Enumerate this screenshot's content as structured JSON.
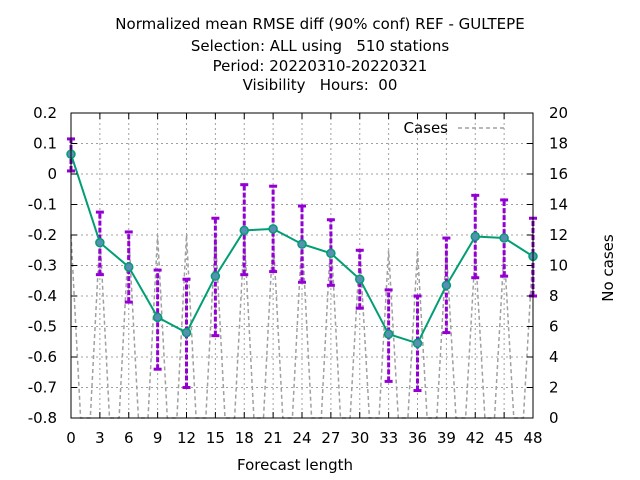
{
  "chart_data": {
    "type": "line",
    "title_lines": [
      "Normalized mean RMSE diff (90% conf) REF - GULTEPE",
      "Selection: ALL using   510 stations",
      "Period: 20220310-20220321",
      "Visibility   Hours:  00"
    ],
    "xlabel": "Forecast length",
    "ylabel": "",
    "y2label": "No cases",
    "x": [
      0,
      3,
      6,
      9,
      12,
      15,
      18,
      21,
      24,
      27,
      30,
      33,
      36,
      39,
      42,
      45,
      48
    ],
    "x_ticks": [
      "0",
      "3",
      "6",
      "9",
      "12",
      "15",
      "18",
      "21",
      "24",
      "27",
      "30",
      "33",
      "36",
      "39",
      "42",
      "45",
      "48"
    ],
    "xlim": [
      0,
      48
    ],
    "ylim": [
      -0.8,
      0.2
    ],
    "y_ticks": [
      "0.2",
      "0.1",
      "0",
      "-0.1",
      "-0.2",
      "-0.3",
      "-0.4",
      "-0.5",
      "-0.6",
      "-0.7",
      "-0.8"
    ],
    "y2lim": [
      0,
      20
    ],
    "y2_ticks": [
      "20",
      "18",
      "16",
      "14",
      "12",
      "10",
      "8",
      "6",
      "4",
      "2",
      "0"
    ],
    "grid": true,
    "legend_position": "top-right",
    "mean_diff": {
      "values": [
        0.065,
        -0.225,
        -0.305,
        -0.47,
        -0.52,
        -0.335,
        -0.185,
        -0.18,
        -0.23,
        -0.26,
        -0.345,
        -0.525,
        -0.555,
        -0.365,
        -0.205,
        -0.21,
        -0.27
      ],
      "color": "#009e73"
    },
    "error_bars": {
      "lower": [
        0.01,
        -0.33,
        -0.42,
        -0.64,
        -0.7,
        -0.53,
        -0.33,
        -0.32,
        -0.355,
        -0.365,
        -0.44,
        -0.68,
        -0.71,
        -0.52,
        -0.34,
        -0.335,
        -0.4
      ],
      "upper": [
        0.115,
        -0.125,
        -0.19,
        -0.315,
        -0.345,
        -0.145,
        -0.035,
        -0.04,
        -0.105,
        -0.15,
        -0.25,
        -0.38,
        -0.4,
        -0.21,
        -0.07,
        -0.085,
        -0.145
      ],
      "color": "#9400d3"
    },
    "cases": {
      "name": "Cases",
      "color": "#a0a0a0",
      "x": [
        0,
        1,
        2,
        3,
        4,
        5,
        6,
        7,
        8,
        9,
        10,
        11,
        12,
        13,
        14,
        15,
        16,
        17,
        18,
        19,
        20,
        21,
        22,
        23,
        24,
        25,
        26,
        27,
        28,
        29,
        30,
        31,
        32,
        33,
        34,
        35,
        36,
        37,
        38,
        39,
        40,
        41,
        42,
        43,
        44,
        45,
        46,
        47,
        48
      ],
      "values": [
        12,
        0,
        0,
        12,
        0,
        0,
        12,
        0,
        0,
        12,
        0,
        0,
        12,
        0,
        0,
        12,
        0,
        0,
        12,
        0,
        0,
        12,
        0,
        0,
        12,
        0,
        0,
        12,
        0,
        0,
        11,
        0,
        0,
        11,
        0,
        0,
        11,
        0,
        0,
        11,
        0,
        0,
        11,
        0,
        0,
        11,
        0,
        0,
        11
      ]
    }
  }
}
